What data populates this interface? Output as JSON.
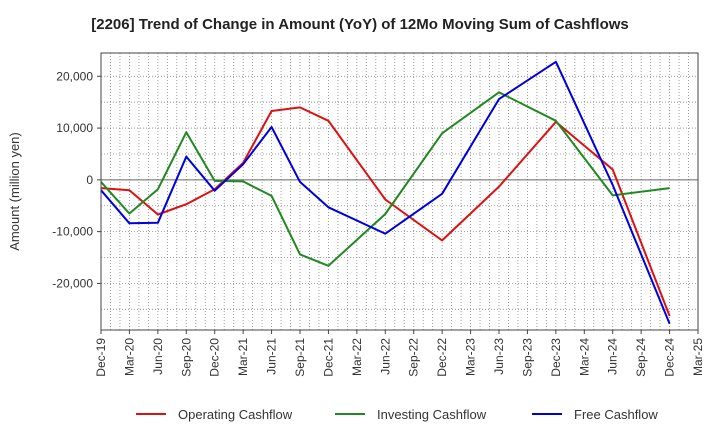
{
  "chart_data": {
    "type": "line",
    "title": "[2206]  Trend of Change in Amount (YoY) of 12Mo Moving Sum of Cashflows",
    "xlabel": "",
    "ylabel": "Amount (million yen)",
    "ylim": [
      -29000,
      24500
    ],
    "yticks": [
      20000,
      10000,
      0,
      -10000,
      -20000
    ],
    "ytick_labels": [
      "20,000",
      "10,000",
      "0",
      "-10,000",
      "-20,000"
    ],
    "grid": true,
    "legend_position": "bottom",
    "categories": [
      "Dec-19",
      "Mar-20",
      "Jun-20",
      "Sep-20",
      "Dec-20",
      "Mar-21",
      "Jun-21",
      "Sep-21",
      "Dec-21",
      "Mar-22",
      "Jun-22",
      "Sep-22",
      "Dec-22",
      "Mar-23",
      "Jun-23",
      "Sep-23",
      "Dec-23",
      "Mar-24",
      "Jun-24",
      "Sep-24",
      "Dec-24",
      "Mar-25"
    ],
    "series": [
      {
        "name": "Operating Cashflow",
        "color": "#dd1111",
        "values": [
          -1600,
          -2000,
          -6700,
          -4700,
          -1800,
          3300,
          13300,
          14000,
          11400,
          null,
          -3800,
          null,
          -11700,
          null,
          -1300,
          null,
          11200,
          null,
          2000,
          null,
          -26300,
          null
        ]
      },
      {
        "name": "Investing Cashflow",
        "color": "#228822",
        "values": [
          -400,
          -6500,
          -1800,
          9200,
          -200,
          -300,
          -3100,
          -14400,
          -16600,
          null,
          -6600,
          null,
          9000,
          null,
          16900,
          null,
          11400,
          null,
          -3000,
          null,
          -1600,
          null
        ]
      },
      {
        "name": "Free Cashflow",
        "color": "#0000dd",
        "values": [
          -2000,
          -8400,
          -8300,
          4500,
          -2100,
          3000,
          10200,
          -400,
          -5300,
          null,
          -10400,
          null,
          -2700,
          null,
          15600,
          null,
          22800,
          null,
          -1000,
          null,
          -27800,
          null
        ]
      }
    ]
  }
}
